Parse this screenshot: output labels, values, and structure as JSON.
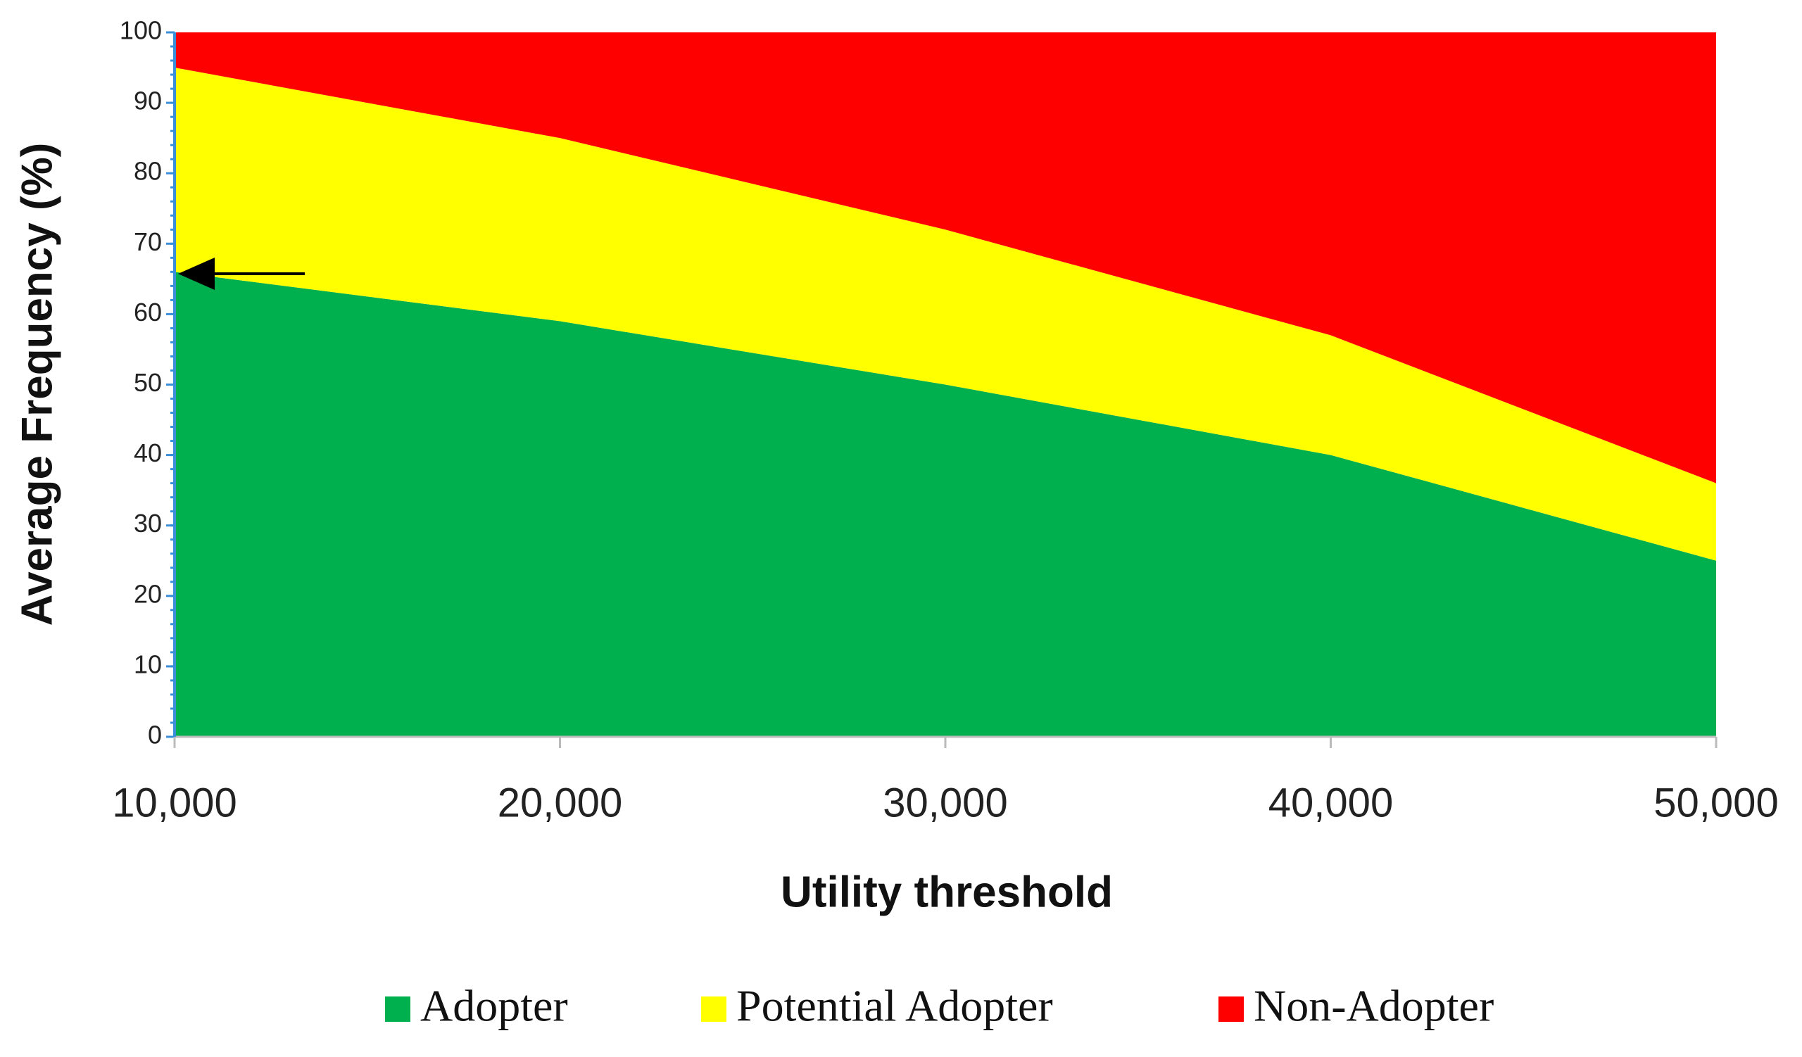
{
  "chart_data": {
    "type": "stacked-area",
    "x_label": "Utility threshold",
    "y_label": "Average Frequency (%)",
    "x": [
      10000,
      20000,
      30000,
      40000,
      50000
    ],
    "series": [
      {
        "name": "Adopter",
        "color": "#00b04f",
        "values": [
          66,
          59,
          50,
          40,
          25
        ]
      },
      {
        "name": "Potential Adopter",
        "color": "#ffff00",
        "values": [
          29,
          26,
          22,
          17,
          11
        ]
      },
      {
        "name": "Non-Adopter",
        "color": "#ff0000",
        "values": [
          5,
          15,
          28,
          43,
          64
        ]
      }
    ],
    "xlim": [
      10000,
      50000
    ],
    "xticks": [
      {
        "value": 10000,
        "label": "10,000"
      },
      {
        "value": 20000,
        "label": "20,000"
      },
      {
        "value": 30000,
        "label": "30,000"
      },
      {
        "value": 40000,
        "label": "40,000"
      },
      {
        "value": 50000,
        "label": "50,000"
      }
    ],
    "ylim": [
      0,
      100
    ],
    "yticks": [
      0,
      10,
      20,
      30,
      40,
      50,
      60,
      70,
      80,
      90,
      100
    ],
    "legend": "bottom"
  }
}
